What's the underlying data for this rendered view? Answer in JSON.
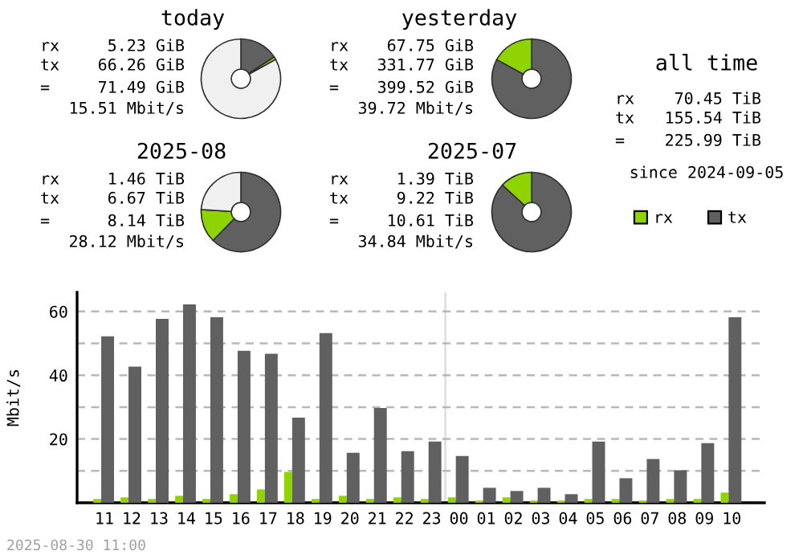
{
  "chart_data": [
    {
      "type": "donut",
      "title": "today",
      "categories": [
        null,
        null,
        null
      ],
      "values": [
        15.8,
        1.2,
        83
      ],
      "colors": [
        "#606060",
        "#8fd400",
        "#f0f0f0"
      ],
      "annotations": [
        "rx",
        "5.23 GiB",
        "tx",
        "66.26 GiB",
        "=",
        "71.49 GiB",
        "15.51 Mbit/s"
      ]
    },
    {
      "type": "donut",
      "title": "yesterday",
      "categories": [
        null,
        null
      ],
      "values": [
        83,
        17
      ],
      "colors": [
        "#606060",
        "#8fd400"
      ],
      "annotations": [
        "rx",
        "67.75 GiB",
        "tx",
        "331.77 GiB",
        "=",
        "399.52 GiB",
        "39.72 Mbit/s"
      ]
    },
    {
      "type": "other",
      "title": "all time",
      "annotations": [
        "rx",
        "70.45 TiB",
        "tx",
        "155.54 TiB",
        "=",
        "225.99 TiB",
        "since 2024-09-05"
      ]
    },
    {
      "type": "donut",
      "title": "2025-08",
      "categories": [
        null,
        null,
        null
      ],
      "values": [
        62.4,
        13.6,
        24
      ],
      "colors": [
        "#606060",
        "#8fd400",
        "#f0f0f0"
      ],
      "annotations": [
        "rx",
        "1.46 TiB",
        "tx",
        "6.67 TiB",
        "=",
        "8.14 TiB",
        "28.12 Mbit/s"
      ]
    },
    {
      "type": "donut",
      "title": "2025-07",
      "categories": [
        null,
        null
      ],
      "values": [
        86.9,
        13.1
      ],
      "colors": [
        "#606060",
        "#8fd400"
      ],
      "annotations": [
        "rx",
        "1.39 TiB",
        "tx",
        "9.22 TiB",
        "=",
        "10.61 TiB",
        "34.84 Mbit/s"
      ]
    },
    {
      "type": "bar",
      "ylabel": "Mbit/s",
      "categories": [
        "11",
        "12",
        "13",
        "14",
        "15",
        "16",
        "17",
        "18",
        "19",
        "20",
        "21",
        "22",
        "23",
        "00",
        "01",
        "02",
        "03",
        "04",
        "05",
        "06",
        "07",
        "08",
        "09",
        "10"
      ],
      "series": [
        {
          "name": "rx",
          "color": "#8fd400",
          "values": [
            1.2,
            1.7,
            1.2,
            2.2,
            1.2,
            2.7,
            4.2,
            9.7,
            1.2,
            2.2,
            1.2,
            1.7,
            1.2,
            1.7,
            0.7,
            1.7,
            0.7,
            0.7,
            1.2,
            1.2,
            0.7,
            1.2,
            1.2,
            3.2
          ]
        },
        {
          "name": "tx",
          "color": "#606060",
          "values": [
            52.2,
            42.7,
            57.7,
            62.2,
            58.2,
            47.7,
            46.7,
            26.7,
            53.2,
            15.7,
            29.7,
            16.2,
            19.2,
            14.7,
            4.7,
            3.7,
            4.7,
            2.7,
            19.2,
            7.7,
            13.7,
            10.2,
            18.7,
            58.2
          ]
        }
      ],
      "ylim": [
        0,
        66
      ],
      "yticks": [
        {
          "value": 10,
          "label": null
        },
        20,
        {
          "value": 30,
          "label": null
        },
        40,
        {
          "value": 50,
          "label": null
        },
        60
      ],
      "grid": "y",
      "legend": "top right",
      "ref_lines": [
        {
          "axis": "x",
          "value": "00",
          "color": "#e0e0e0"
        }
      ],
      "annotations": [
        "2025-08-30 11:00"
      ]
    }
  ]
}
